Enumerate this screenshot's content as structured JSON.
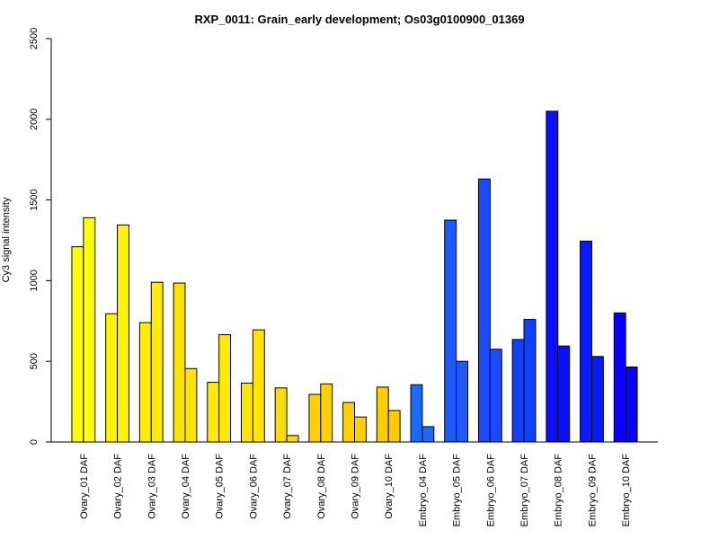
{
  "chart_data": {
    "type": "bar",
    "title": "RXP_0011: Grain_early development; Os03g0100900_01369",
    "xlabel": "",
    "ylabel": "Cy3 signal intensity",
    "ylim": [
      0,
      2500
    ],
    "yticks": [
      0,
      500,
      1000,
      1500,
      2000,
      2500
    ],
    "grid": false,
    "categories": [
      "Ovary_01 DAF",
      "Ovary_02 DAF",
      "Ovary_03 DAF",
      "Ovary_04 DAF",
      "Ovary_05 DAF",
      "Ovary_06 DAF",
      "Ovary_07 DAF",
      "Ovary_08 DAF",
      "Ovary_09 DAF",
      "Ovary_10 DAF",
      "Embryo_04 DAF",
      "Embryo_05 DAF",
      "Embryo_06 DAF",
      "Embryo_07 DAF",
      "Embryo_08 DAF",
      "Embryo_09 DAF",
      "Embryo_10 DAF"
    ],
    "series": [
      {
        "values": [
          1210,
          795,
          740,
          985,
          370,
          365,
          335,
          295,
          245,
          340,
          355,
          1375,
          1630,
          635,
          2050,
          1245,
          800
        ]
      },
      {
        "values": [
          1390,
          1345,
          990,
          455,
          665,
          695,
          40,
          360,
          155,
          195,
          95,
          500,
          575,
          760,
          595,
          530,
          465
        ]
      }
    ],
    "bar_colors": [
      "#FFFF00",
      "#FFF500",
      "#FFEC00",
      "#FFE300",
      "#FFEA00",
      "#FFE600",
      "#FFDC00",
      "#FFD000",
      "#FFD000",
      "#FFCC00",
      "#1A6AFF",
      "#1A5AFF",
      "#1A4BFF",
      "#1040FF",
      "#0A10FF",
      "#0A1AFF",
      "#0A00FF"
    ]
  }
}
